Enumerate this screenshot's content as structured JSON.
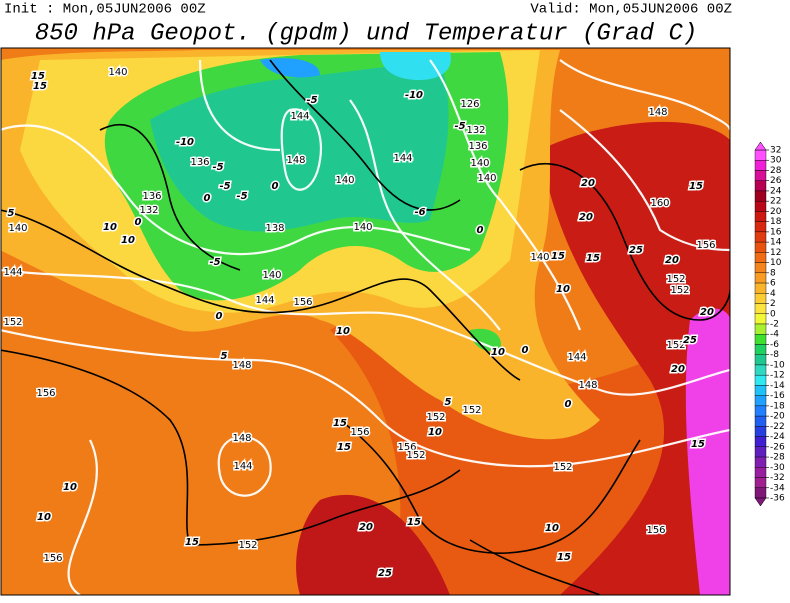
{
  "header": {
    "init": "Init : Mon,05JUN2006 00Z",
    "valid": "Valid: Mon,05JUN2006 00Z",
    "title": "850 hPa Geopot. (gpdm) und Temperatur (Grad C)"
  },
  "colorbar": {
    "levels": [
      32,
      30,
      28,
      26,
      24,
      22,
      20,
      18,
      16,
      14,
      12,
      10,
      8,
      6,
      4,
      2,
      0,
      -2,
      -4,
      -6,
      -8,
      -10,
      -12,
      -14,
      -16,
      -18,
      -20,
      -22,
      -24,
      -26,
      -28,
      -30,
      -32,
      -34,
      -36
    ],
    "colors": [
      "#ff50ff",
      "#f020d8",
      "#d81098",
      "#b80050",
      "#a00020",
      "#b80818",
      "#cc1810",
      "#d82810",
      "#e03c10",
      "#e85410",
      "#f06c14",
      "#f4841c",
      "#f89c24",
      "#fab42c",
      "#fccc34",
      "#fce440",
      "#f0f838",
      "#a8f030",
      "#40e030",
      "#20d060",
      "#20c890",
      "#30d8c0",
      "#30e8f0",
      "#20c0f8",
      "#20a0ff",
      "#2080ff",
      "#2060f0",
      "#2840e0",
      "#4020d0",
      "#6020c0",
      "#8020b0",
      "#9820a0",
      "#a02090",
      "#801878"
    ]
  },
  "geopotential_labels": [
    "140",
    "136",
    "144",
    "148",
    "140",
    "126",
    "132",
    "136",
    "140",
    "144",
    "136",
    "132",
    "140",
    "138",
    "140",
    "144",
    "148",
    "152",
    "156",
    "148",
    "144",
    "152",
    "156",
    "156",
    "152",
    "156",
    "152",
    "156",
    "140",
    "148",
    "148",
    "152",
    "160",
    "156",
    "152",
    "152",
    "144",
    "156",
    "140",
    "140",
    "152",
    "152",
    "144"
  ],
  "temperature_labels": [
    "15",
    "15",
    "-10",
    "-5",
    "-5",
    "0",
    "-5",
    "-10",
    "-5",
    "-5",
    "0",
    "0",
    "-5",
    "-6",
    "0",
    "10",
    "5",
    "0",
    "5",
    "10",
    "15",
    "10",
    "15",
    "10",
    "15",
    "15",
    "20",
    "20",
    "20",
    "25",
    "20",
    "25",
    "10",
    "10",
    "10",
    "15",
    "20",
    "15",
    "25",
    "15",
    "10",
    "5",
    "0",
    "0",
    "15",
    "20",
    "15",
    "10"
  ]
}
